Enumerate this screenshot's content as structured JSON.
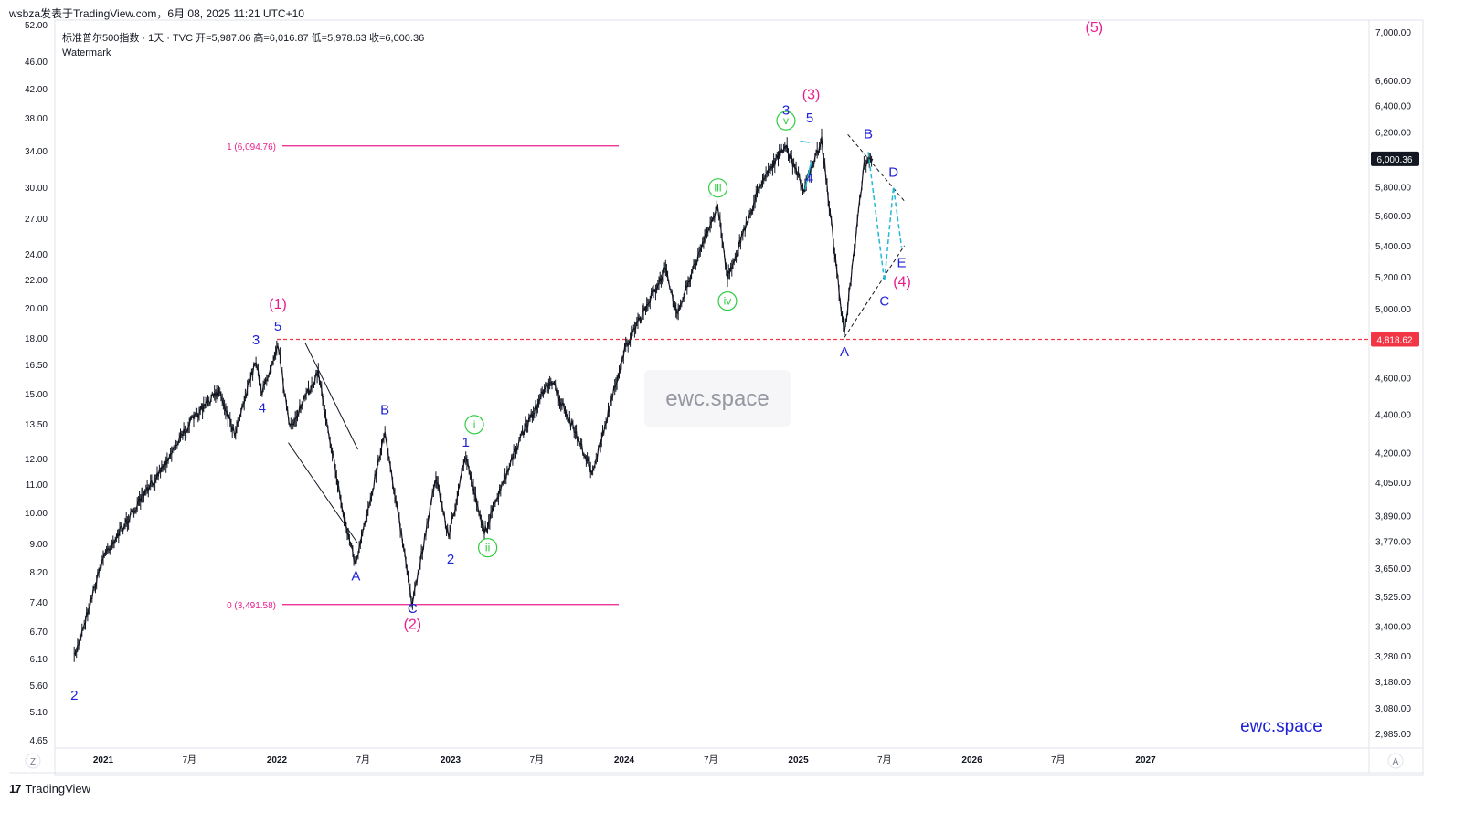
{
  "header": {
    "publisher_line": "wsbza发表于TradingView.com，6月 08, 2025 11:21 UTC+10"
  },
  "footer": {
    "brand": "TradingView",
    "logo_glyph": "17"
  },
  "chart": {
    "symbol_line": "标准普尔500指数 · 1天 · TVC",
    "ohlc": {
      "open_label": "开",
      "open": "5,987.06",
      "high_label": "高",
      "high": "6,016.87",
      "low_label": "低",
      "low": "5,978.63",
      "close_label": "收",
      "close": "6,000.36"
    },
    "indicator": "Watermark",
    "watermark_center": "ewc.space",
    "watermark_corner": "ewc.space",
    "corner_left": "Z",
    "corner_right": "A"
  },
  "chart_data": {
    "type": "line",
    "title": "标准普尔500指数 · 1天 · TVC",
    "y_scale": "log",
    "ylim": [
      2930,
      7080
    ],
    "right_axis_ticks": [
      "7,000.00",
      "6,600.00",
      "6,400.00",
      "6,200.00",
      "5,800.00",
      "5,600.00",
      "5,400.00",
      "5,200.00",
      "5,000.00",
      "4,600.00",
      "4,400.00",
      "4,200.00",
      "4,050.00",
      "3,890.00",
      "3,770.00",
      "3,650.00",
      "3,525.00",
      "3,400.00",
      "3,280.00",
      "3,180.00",
      "3,080.00",
      "2,985.00"
    ],
    "left_axis_ticks": [
      "52.00",
      "46.00",
      "42.00",
      "38.00",
      "34.00",
      "30.00",
      "27.00",
      "24.00",
      "22.00",
      "20.00",
      "18.00",
      "16.50",
      "15.00",
      "13.50",
      "12.00",
      "11.00",
      "10.00",
      "9.00",
      "8.20",
      "7.40",
      "6.70",
      "6.10",
      "5.60",
      "5.10",
      "4.65"
    ],
    "x_ticks": [
      "2021",
      "7月",
      "2022",
      "7月",
      "2023",
      "7月",
      "2024",
      "7月",
      "2025",
      "7月",
      "2026",
      "7月",
      "2027"
    ],
    "last_price_label": "6,000.36",
    "horizontal_level_label": "4,818.62",
    "fib_levels": [
      {
        "label": "1 (6,094.76)",
        "value": 6094.76
      },
      {
        "label": "0 (3,491.58)",
        "value": 3491.58
      }
    ],
    "series": [
      {
        "name": "",
        "values": [
          {
            "d": "2020-11-01",
            "v": 3270
          },
          {
            "d": "2021-01-01",
            "v": 3700
          },
          {
            "d": "2021-04-01",
            "v": 4000
          },
          {
            "d": "2021-07-01",
            "v": 4350
          },
          {
            "d": "2021-09-01",
            "v": 4530
          },
          {
            "d": "2021-10-04",
            "v": 4300
          },
          {
            "d": "2021-11-18",
            "v": 4700
          },
          {
            "d": "2021-12-01",
            "v": 4510
          },
          {
            "d": "2022-01-03",
            "v": 4800
          },
          {
            "d": "2022-01-28",
            "v": 4320
          },
          {
            "d": "2022-03-29",
            "v": 4630
          },
          {
            "d": "2022-05-20",
            "v": 3900
          },
          {
            "d": "2022-06-16",
            "v": 3660
          },
          {
            "d": "2022-08-16",
            "v": 4310
          },
          {
            "d": "2022-10-13",
            "v": 3490
          },
          {
            "d": "2022-12-01",
            "v": 4080
          },
          {
            "d": "2022-12-28",
            "v": 3790
          },
          {
            "d": "2023-02-02",
            "v": 4180
          },
          {
            "d": "2023-03-13",
            "v": 3810
          },
          {
            "d": "2023-06-01",
            "v": 4300
          },
          {
            "d": "2023-07-31",
            "v": 4590
          },
          {
            "d": "2023-10-27",
            "v": 4100
          },
          {
            "d": "2024-01-02",
            "v": 4760
          },
          {
            "d": "2024-03-28",
            "v": 5250
          },
          {
            "d": "2024-04-19",
            "v": 4970
          },
          {
            "d": "2024-07-16",
            "v": 5670
          },
          {
            "d": "2024-08-05",
            "v": 5190
          },
          {
            "d": "2024-10-18",
            "v": 5860
          },
          {
            "d": "2024-12-06",
            "v": 6090
          },
          {
            "d": "2025-01-13",
            "v": 5780
          },
          {
            "d": "2025-02-19",
            "v": 6140
          },
          {
            "d": "2025-04-08",
            "v": 4840
          },
          {
            "d": "2025-05-19",
            "v": 5950
          },
          {
            "d": "2025-06-06",
            "v": 6000
          }
        ]
      }
    ],
    "wave_labels": [
      {
        "text": "(1)",
        "d": "2022-01-03",
        "v": 5000,
        "color": "#e91e8c"
      },
      {
        "text": "5",
        "d": "2022-01-03",
        "v": 4870,
        "color": "#1e22d6"
      },
      {
        "text": "3",
        "d": "2021-11-18",
        "v": 4790,
        "color": "#1e22d6"
      },
      {
        "text": "4",
        "d": "2021-12-01",
        "v": 4410,
        "color": "#1e22d6"
      },
      {
        "text": "2",
        "d": "2020-11-01",
        "v": 3110,
        "color": "#1e22d6"
      },
      {
        "text": "A",
        "d": "2022-06-16",
        "v": 3595,
        "color": "#1e22d6"
      },
      {
        "text": "B",
        "d": "2022-08-16",
        "v": 4400,
        "color": "#1e22d6"
      },
      {
        "text": "C",
        "d": "2022-10-13",
        "v": 3455,
        "color": "#1e22d6"
      },
      {
        "text": "(2)",
        "d": "2022-10-13",
        "v": 3390,
        "color": "#e91e8c"
      },
      {
        "text": "1",
        "d": "2023-02-02",
        "v": 4230,
        "color": "#1e22d6"
      },
      {
        "text": "2",
        "d": "2023-01-01",
        "v": 3670,
        "color": "#1e22d6"
      },
      {
        "text": "i",
        "d": "2023-02-20",
        "v": 4320,
        "color": "#2ecc40"
      },
      {
        "text": "ii",
        "d": "2023-03-20",
        "v": 3720,
        "color": "#2ecc40"
      },
      {
        "text": "iii",
        "d": "2024-07-16",
        "v": 5760,
        "color": "#2ecc40"
      },
      {
        "text": "iv",
        "d": "2024-08-05",
        "v": 5020,
        "color": "#2ecc40"
      },
      {
        "text": "v",
        "d": "2024-12-06",
        "v": 6250,
        "color": "#2ecc40"
      },
      {
        "text": "3",
        "d": "2024-12-06",
        "v": 6330,
        "color": "#1e22d6"
      },
      {
        "text": "5",
        "d": "2025-01-25",
        "v": 6270,
        "color": "#1e22d6"
      },
      {
        "text": "(3)",
        "d": "2025-01-28",
        "v": 6450,
        "color": "#e91e8c"
      },
      {
        "text": "4",
        "d": "2025-01-25",
        "v": 5830,
        "color": "#1e22d6"
      },
      {
        "text": "A",
        "d": "2025-04-08",
        "v": 4720,
        "color": "#1e22d6"
      },
      {
        "text": "B",
        "d": "2025-05-28",
        "v": 6150,
        "color": "#1e22d6"
      },
      {
        "text": "C",
        "d": "2025-07-01",
        "v": 5020,
        "color": "#1e22d6"
      },
      {
        "text": "D",
        "d": "2025-07-20",
        "v": 5870,
        "color": "#1e22d6"
      },
      {
        "text": "E",
        "d": "2025-08-06",
        "v": 5260,
        "color": "#1e22d6"
      },
      {
        "text": "(4)",
        "d": "2025-08-07",
        "v": 5140,
        "color": "#e91e8c"
      },
      {
        "text": "(5)",
        "d": "2026-09-15",
        "v": 7000,
        "color": "#e91e8c"
      }
    ],
    "grid": false
  }
}
